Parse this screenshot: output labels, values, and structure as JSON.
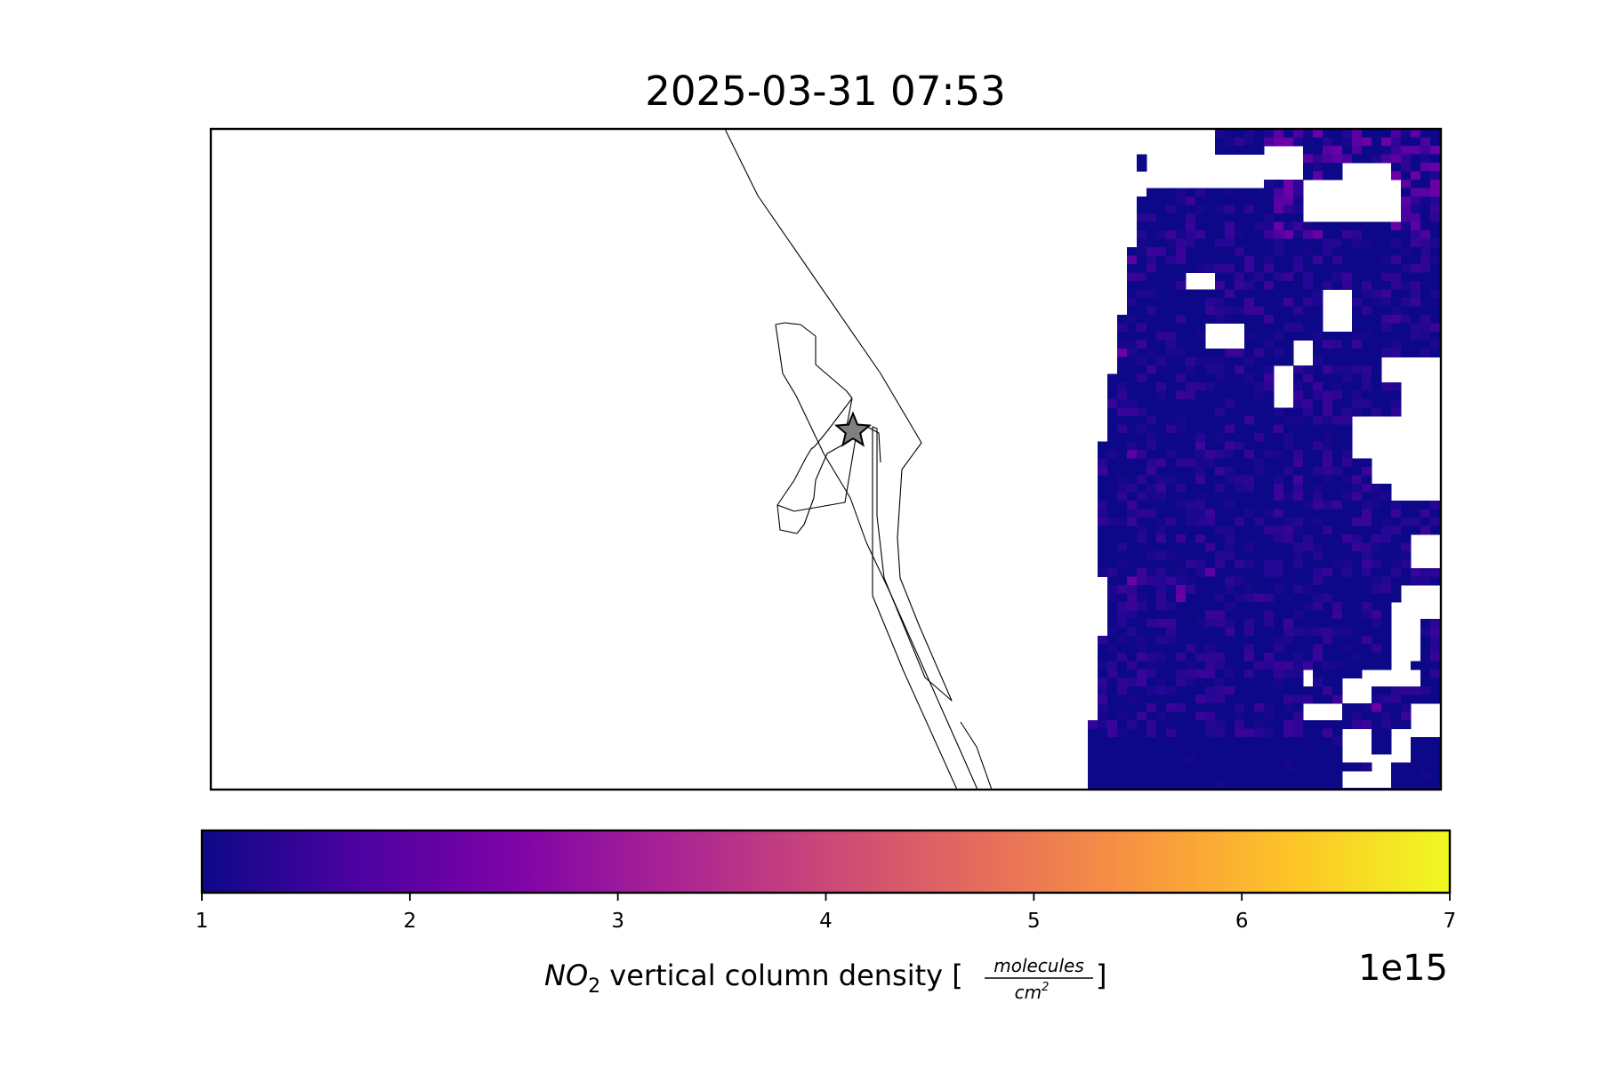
{
  "title": "2025-03-31 07:53",
  "colorbar": {
    "colormap": "plasma",
    "min": 1,
    "max": 7,
    "ticks": [
      "1",
      "2",
      "3",
      "4",
      "5",
      "6",
      "7"
    ],
    "offset_text": "1e15",
    "label": {
      "species": "NO",
      "species_subscript": "2",
      "text": " vertical column density [",
      "unit_numerator": "molecules",
      "unit_denominator": "cm",
      "unit_denominator_superscript": "2",
      "close": "]"
    }
  },
  "map": {
    "marker": "gray-star",
    "coastline_color": "#000000",
    "frame_color": "#000000"
  }
}
